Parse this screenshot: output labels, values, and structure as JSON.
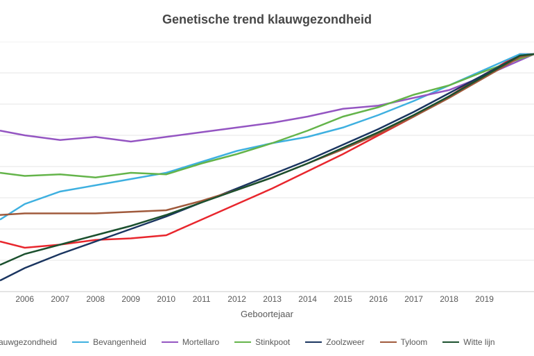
{
  "chart": {
    "type": "line",
    "title": "Genetische trend klauwgezondheid",
    "title_fontsize": 18,
    "title_color": "#474747",
    "background_color": "#ffffff",
    "grid_color": "#e6e6e6",
    "text_color": "#595959",
    "xaxis": {
      "title": "Geboortejaar",
      "ticks": [
        2006,
        2007,
        2008,
        2009,
        2010,
        2011,
        2012,
        2013,
        2014,
        2015,
        2016,
        2017,
        2018,
        2019
      ],
      "tick_fontsize": 12,
      "xlim": [
        2005.3,
        2020.4
      ]
    },
    "yaxis": {
      "ylim": [
        88,
        104
      ],
      "grid_step": 2,
      "show_labels": false
    },
    "line_width": 2.5,
    "series": [
      {
        "name": "Klauwgezondheid",
        "color": "#e8262d",
        "line_width": 3.2,
        "x": [
          2005.3,
          2006,
          2007,
          2008,
          2009,
          2010,
          2011,
          2012,
          2013,
          2014,
          2015,
          2016,
          2017,
          2018,
          2019,
          2020,
          2020.4
        ],
        "y": [
          91.2,
          90.8,
          91.0,
          91.3,
          91.4,
          91.6,
          92.6,
          93.6,
          94.6,
          95.7,
          96.8,
          98.0,
          99.2,
          100.5,
          101.9,
          103.2,
          103.2
        ]
      },
      {
        "name": "Bevangenheid",
        "color": "#3eb0e0",
        "x": [
          2005.3,
          2006,
          2007,
          2008,
          2009,
          2010,
          2011,
          2012,
          2013,
          2014,
          2015,
          2016,
          2017,
          2018,
          2019,
          2020,
          2020.4
        ],
        "y": [
          92.6,
          93.6,
          94.4,
          94.8,
          95.2,
          95.6,
          96.3,
          97.0,
          97.5,
          97.9,
          98.5,
          99.3,
          100.2,
          101.2,
          102.2,
          103.2,
          103.2
        ]
      },
      {
        "name": "Mortellaro",
        "color": "#9455c2",
        "x": [
          2005.3,
          2006,
          2007,
          2008,
          2009,
          2010,
          2011,
          2012,
          2013,
          2014,
          2015,
          2016,
          2017,
          2018,
          2019,
          2020,
          2020.4
        ],
        "y": [
          98.3,
          98.0,
          97.7,
          97.9,
          97.6,
          97.9,
          98.2,
          98.5,
          98.8,
          99.2,
          99.7,
          99.9,
          100.4,
          100.9,
          101.8,
          102.8,
          103.2
        ]
      },
      {
        "name": "Stinkpoot",
        "color": "#64b44a",
        "x": [
          2005.3,
          2006,
          2007,
          2008,
          2009,
          2010,
          2011,
          2012,
          2013,
          2014,
          2015,
          2016,
          2017,
          2018,
          2019,
          2020,
          2020.4
        ],
        "y": [
          95.6,
          95.4,
          95.5,
          95.3,
          95.6,
          95.5,
          96.2,
          96.8,
          97.5,
          98.3,
          99.2,
          99.8,
          100.6,
          101.2,
          102.1,
          102.9,
          103.2
        ]
      },
      {
        "name": "Zoolzweer",
        "color": "#1a3560",
        "x": [
          2005.3,
          2006,
          2007,
          2008,
          2009,
          2010,
          2011,
          2012,
          2013,
          2014,
          2015,
          2016,
          2017,
          2018,
          2019,
          2020,
          2020.4
        ],
        "y": [
          88.7,
          89.5,
          90.4,
          91.2,
          92.0,
          92.8,
          93.7,
          94.6,
          95.5,
          96.4,
          97.4,
          98.4,
          99.5,
          100.7,
          101.9,
          103.1,
          103.2
        ]
      },
      {
        "name": "Tyloom",
        "color": "#a05a3c",
        "x": [
          2005.3,
          2006,
          2007,
          2008,
          2009,
          2010,
          2011,
          2012,
          2013,
          2014,
          2015,
          2016,
          2017,
          2018,
          2019,
          2020,
          2020.4
        ],
        "y": [
          92.9,
          93.0,
          93.0,
          93.0,
          93.1,
          93.2,
          93.8,
          94.5,
          95.3,
          96.2,
          97.1,
          98.1,
          99.2,
          100.4,
          101.7,
          103.0,
          103.2
        ]
      },
      {
        "name": "Witte lijn",
        "color": "#1b502e",
        "x": [
          2005.3,
          2006,
          2007,
          2008,
          2009,
          2010,
          2011,
          2012,
          2013,
          2014,
          2015,
          2016,
          2017,
          2018,
          2019,
          2020,
          2020.4
        ],
        "y": [
          89.7,
          90.4,
          91.0,
          91.6,
          92.2,
          92.9,
          93.7,
          94.5,
          95.3,
          96.2,
          97.2,
          98.2,
          99.3,
          100.5,
          101.8,
          103.1,
          103.2
        ]
      }
    ],
    "legend": {
      "leading_label": "auwgezondheid",
      "position": "bottom",
      "swatch_width": 24
    }
  }
}
